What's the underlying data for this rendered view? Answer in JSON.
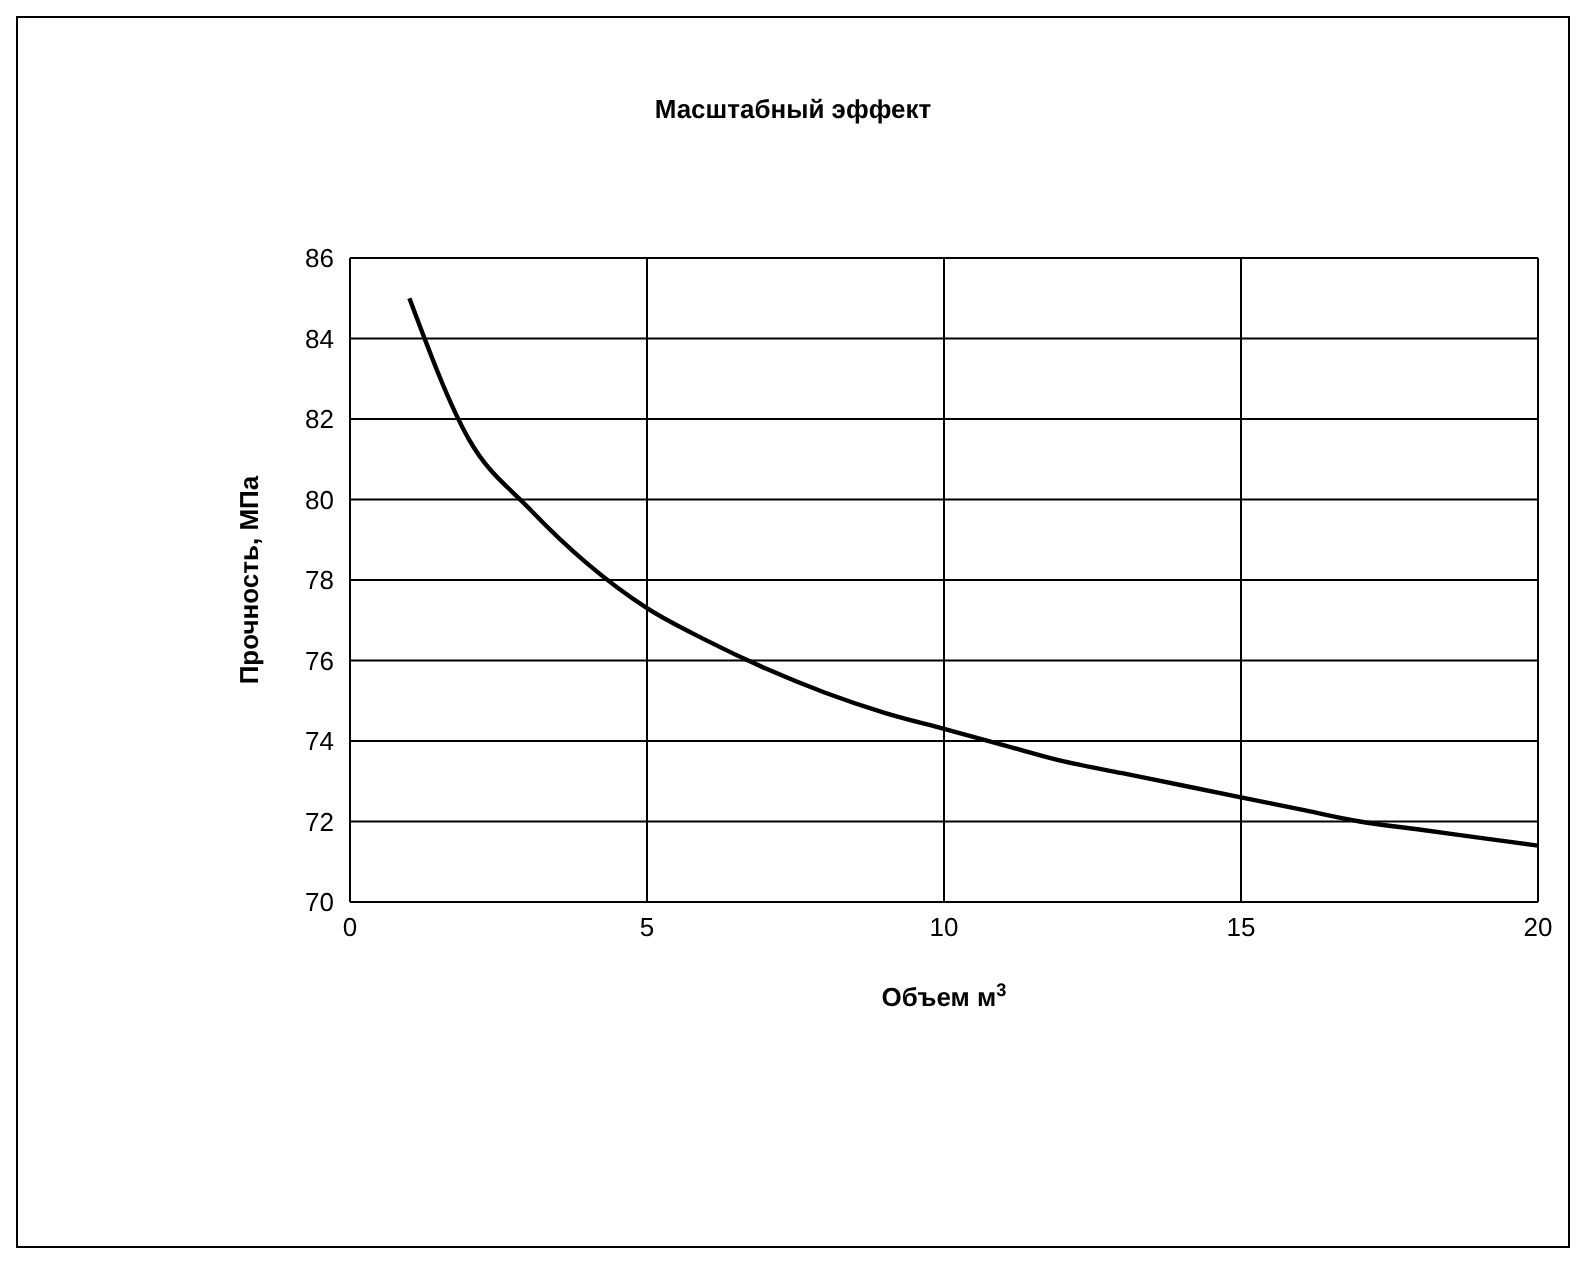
{
  "chart_data": {
    "type": "line",
    "title": "Масштабный эффект",
    "xlabel": "Объем м$^{3}$",
    "ylabel": "Прочность, МПа",
    "x": [
      1,
      2,
      3,
      4,
      5,
      6,
      7,
      8,
      9,
      10,
      11,
      12,
      13,
      14,
      15,
      16,
      17,
      18,
      19,
      20
    ],
    "series": [
      {
        "color": "#000000",
        "values": [
          85.0,
          81.5,
          79.8,
          78.4,
          77.3,
          76.5,
          75.8,
          75.2,
          74.7,
          74.3,
          73.9,
          73.5,
          73.2,
          72.9,
          72.6,
          72.3,
          72.0,
          71.8,
          71.6,
          71.4
        ]
      }
    ],
    "xlim": [
      0,
      20
    ],
    "xticks": [
      0,
      5,
      10,
      15,
      20
    ],
    "ylim": [
      70,
      86
    ],
    "yticks": [
      70,
      72,
      74,
      76,
      78,
      80,
      82,
      84,
      86
    ],
    "grid": true,
    "legend": false,
    "marker": "none",
    "line_style": "solid"
  }
}
